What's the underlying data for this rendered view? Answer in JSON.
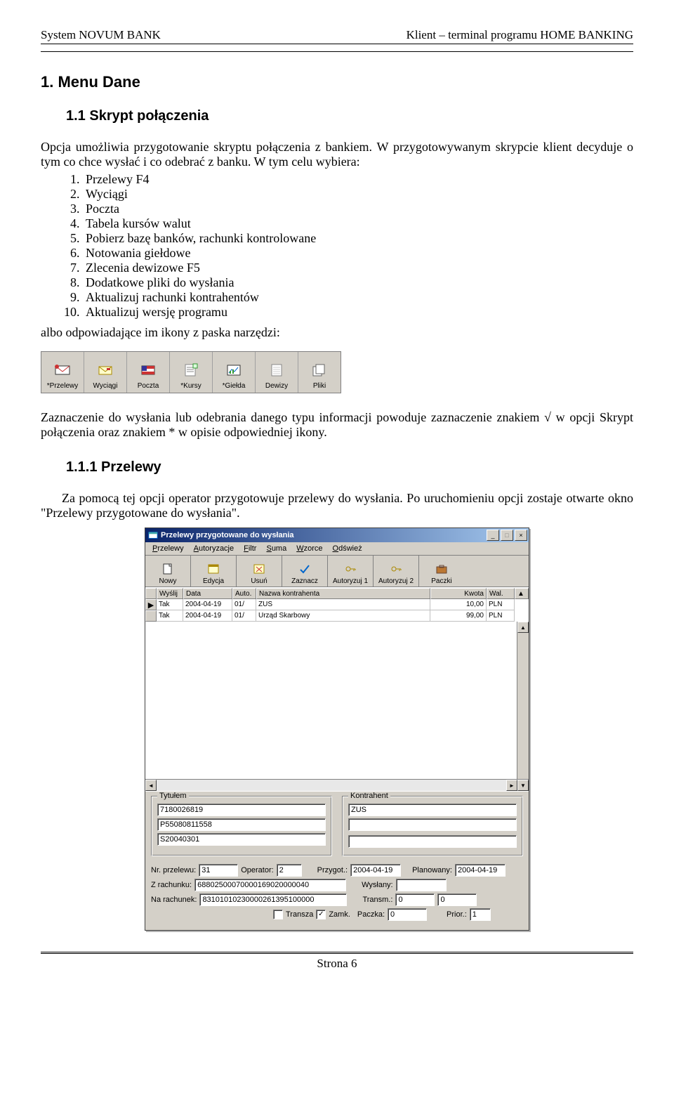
{
  "header": {
    "left": "System NOVUM  BANK",
    "right": "Klient – terminal programu HOME BANKING"
  },
  "section1": {
    "title": "1. Menu Dane"
  },
  "section11": {
    "title": "1.1 Skrypt połączenia"
  },
  "para1": "Opcja umożliwia przygotowanie skryptu połączenia z bankiem. W przygotowywanym skrypcie klient decyduje o tym co chce wysłać i co odebrać z banku. W tym celu wybiera:",
  "list1": [
    "Przelewy F4",
    "Wyciągi",
    "Poczta",
    "Tabela kursów walut",
    "Pobierz bazę banków, rachunki kontrolowane",
    "Notowania giełdowe",
    "Zlecenia dewizowe F5",
    "Dodatkowe pliki do wysłania",
    "Aktualizuj rachunki kontrahentów",
    "Aktualizuj wersję programu"
  ],
  "para2": "albo odpowiadające im ikony z paska narzędzi:",
  "toolbar1": [
    {
      "label": "*Przelewy",
      "icon": "mail"
    },
    {
      "label": "Wyciągi",
      "icon": "envelope"
    },
    {
      "label": "Poczta",
      "icon": "flag"
    },
    {
      "label": "*Kursy",
      "icon": "note"
    },
    {
      "label": "*Giełda",
      "icon": "chart"
    },
    {
      "label": "Dewizy",
      "icon": "sheet"
    },
    {
      "label": "Pliki",
      "icon": "files"
    }
  ],
  "para3": "Zaznaczenie do wysłania lub odebrania danego typu informacji powoduje zaznaczenie znakiem √ w opcji Skrypt połączenia oraz znakiem * w opisie odpowiedniej ikony.",
  "section111": {
    "title": "1.1.1 Przelewy"
  },
  "para4": "Za pomocą tej opcji operator przygotowuje przelewy do wysłania. Po uruchomieniu opcji zostaje otwarte okno \"Przelewy przygotowane do wysłania\".",
  "window": {
    "title": "Przelewy przygotowane do wysłania",
    "menu": [
      "Przelewy",
      "Autoryzacje",
      "Filtr",
      "Suma",
      "Wzorce",
      "Odśwież"
    ],
    "toolbar": [
      {
        "label": "Nowy",
        "icon": "new"
      },
      {
        "label": "Edycja",
        "icon": "edit"
      },
      {
        "label": "Usuń",
        "icon": "delete"
      },
      {
        "label": "Zaznacz",
        "icon": "check"
      },
      {
        "label": "Autoryzuj 1",
        "icon": "key"
      },
      {
        "label": "Autoryzuj 2",
        "icon": "key"
      },
      {
        "label": "Paczki",
        "icon": "case"
      }
    ],
    "grid": {
      "cols": [
        "",
        "Wyślij",
        "Data",
        "Auto.",
        "Nazwa kontrahenta",
        "Kwota",
        "Wal."
      ],
      "rows": [
        {
          "marker": "▶",
          "wyslij": "Tak",
          "data": "2004-04-19",
          "auto": "01/",
          "nazwa": "ZUS",
          "kwota": "10,00",
          "wal": "PLN"
        },
        {
          "marker": "",
          "wyslij": "Tak",
          "data": "2004-04-19",
          "auto": "01/",
          "nazwa": "Urząd Skarbowy",
          "kwota": "99,00",
          "wal": "PLN"
        }
      ]
    },
    "panel": {
      "tytulem_label": "Tytułem",
      "tytulem": [
        "7180026819",
        "P55080811558",
        "S20040301"
      ],
      "kontrahent_label": "Kontrahent",
      "kontrahent": [
        "ZUS",
        "",
        ""
      ],
      "row1": {
        "nr_przelewu_label": "Nr. przelewu:",
        "nr_przelewu": "31",
        "operator_label": "Operator:",
        "operator": "2",
        "przygot_label": "Przygot.:",
        "przygot": "2004-04-19",
        "planowany_label": "Planowany:",
        "planowany": "2004-04-19"
      },
      "row2": {
        "zrachunku_label": "Z rachunku:",
        "zrachunku": "68802500070000169020000040",
        "wyslany_label": "Wysłany:",
        "wyslany": ""
      },
      "row3": {
        "narachunek_label": "Na rachunek:",
        "narachunek": "83101010230000261395100000",
        "transm_label": "Transm.:",
        "transm": "0",
        "transm2": "0"
      },
      "row4": {
        "transza_label": "Transza",
        "zamk_label": "Zamk.",
        "paczka_label": "Paczka:",
        "paczka": "0",
        "prior_label": "Prior.:",
        "prior": "1"
      }
    }
  },
  "footer": {
    "pagenum": "Strona 6"
  }
}
